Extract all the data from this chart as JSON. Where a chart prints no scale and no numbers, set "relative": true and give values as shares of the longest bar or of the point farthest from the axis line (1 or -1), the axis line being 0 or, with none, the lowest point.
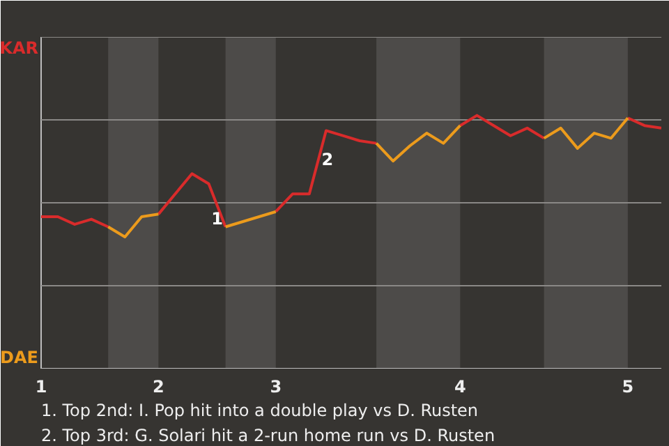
{
  "chart_data": {
    "type": "line",
    "relative": true,
    "categories": [
      "1",
      null,
      null,
      null,
      null,
      null,
      null,
      "2",
      null,
      null,
      null,
      null,
      null,
      null,
      "3",
      null,
      null,
      null,
      null,
      null,
      null,
      null,
      null,
      null,
      null,
      "4",
      null,
      null,
      null,
      null,
      null,
      null,
      null,
      null,
      null,
      "5",
      null,
      null
    ],
    "series": [
      {
        "color": "#d92b2b",
        "values": [
          0.6,
          0.6,
          0.57,
          0.59,
          0.56,
          null,
          null,
          0.61,
          0.69,
          0.77,
          0.73,
          0.56,
          null,
          null,
          0.62,
          0.69,
          0.69,
          0.94,
          0.92,
          0.9,
          0.89,
          null,
          null,
          null,
          null,
          0.96,
          1,
          0.96,
          0.92,
          0.95,
          0.91,
          null,
          null,
          null,
          null,
          0.99,
          0.96,
          0.95
        ]
      },
      {
        "color": "#ec9b1c",
        "values": [
          null,
          null,
          null,
          null,
          0.56,
          0.52,
          0.6,
          0.61,
          null,
          null,
          null,
          0.56,
          0.58,
          0.6,
          0.62,
          null,
          null,
          null,
          null,
          null,
          0.89,
          0.82,
          0.88,
          0.93,
          0.89,
          0.96,
          null,
          null,
          null,
          null,
          0.91,
          0.95,
          0.87,
          0.93,
          0.91,
          0.99,
          null,
          null
        ]
      }
    ],
    "grid": "y",
    "marker": "none",
    "line_style": "solid",
    "annotations": [
      "KAR",
      "DAE",
      {
        "text": "1",
        "y": 0.56
      },
      {
        "text": "2",
        "y": 0.94
      },
      "1. Top 2nd: I. Pop hit into a double play vs D. Rusten",
      "2. Top 3rd: G. Solari hit a 2-run home run vs D. Rusten"
    ]
  }
}
